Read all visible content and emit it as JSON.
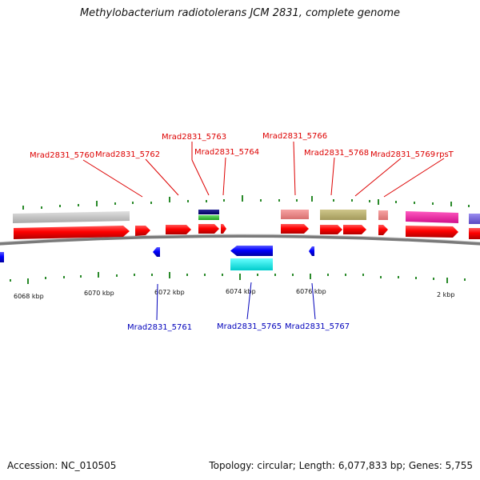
{
  "title": "Methylobacterium radiotolerans JCM 2831, complete genome",
  "footer": {
    "accession": "Accession: NC_010505",
    "summary": "Topology: circular; Length: 6,077,833 bp; Genes: 5,755"
  },
  "colors": {
    "forward_label": "#dd0000",
    "reverse_label": "#0000bb",
    "tick": "#2a8a2a",
    "backbone": "#808080"
  },
  "scale_labels": [
    "6068 kbp",
    "6070 kbp",
    "6072 kbp",
    "6074 kbp",
    "6076 kbp",
    "2 kbp"
  ],
  "forward_labels": [
    "Mrad2831_5760",
    "Mrad2831_5762",
    "Mrad2831_5763",
    "Mrad2831_5764",
    "Mrad2831_5766",
    "Mrad2831_5768",
    "Mrad2831_5769",
    "rpsT"
  ],
  "reverse_labels": [
    "Mrad2831_5761",
    "Mrad2831_5765",
    "Mrad2831_5767"
  ]
}
